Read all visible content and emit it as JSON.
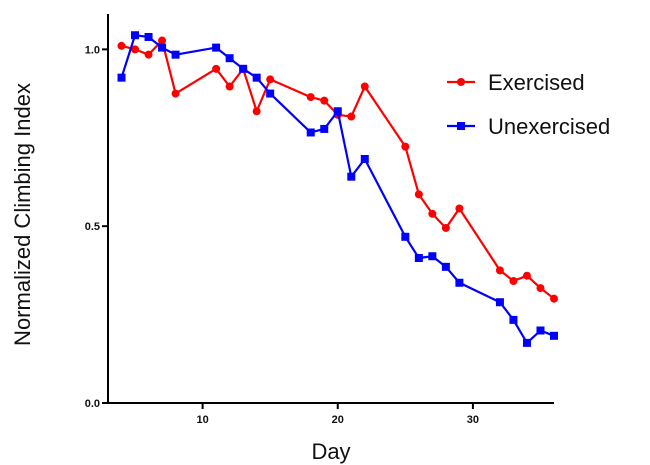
{
  "chart_data": {
    "type": "line",
    "title": "",
    "xlabel": "Day",
    "ylabel": "Normalized Climbing Index",
    "xlim": [
      3,
      36
    ],
    "ylim": [
      0,
      1.1
    ],
    "xticks": [
      10,
      20,
      30
    ],
    "xtick_labels": [
      "10",
      "20",
      "30"
    ],
    "yticks": [
      0,
      0.5,
      1.0
    ],
    "ytick_labels": [
      "0.0",
      "0.5",
      "1.0"
    ],
    "grid": false,
    "legend_position": "top-right",
    "series": [
      {
        "name": "Exercised",
        "color": "#ff0000",
        "marker": "circle",
        "x": [
          4,
          5,
          6,
          7,
          8,
          11,
          12,
          13,
          14,
          15,
          18,
          19,
          20,
          21,
          22,
          25,
          26,
          27,
          28,
          29,
          32,
          33,
          34,
          35,
          36
        ],
        "y": [
          1.01,
          1.0,
          0.985,
          1.025,
          0.875,
          0.945,
          0.895,
          0.945,
          0.825,
          0.915,
          0.865,
          0.855,
          0.815,
          0.81,
          0.895,
          0.725,
          0.59,
          0.535,
          0.495,
          0.55,
          0.375,
          0.345,
          0.36,
          0.325,
          0.295
        ]
      },
      {
        "name": "Unexercised",
        "color": "#0000ff",
        "marker": "square",
        "x": [
          4,
          5,
          6,
          7,
          8,
          11,
          12,
          13,
          14,
          15,
          18,
          19,
          20,
          21,
          22,
          25,
          26,
          27,
          28,
          29,
          32,
          33,
          34,
          35,
          36
        ],
        "y": [
          0.92,
          1.04,
          1.035,
          1.005,
          0.985,
          1.005,
          0.975,
          0.945,
          0.92,
          0.875,
          0.765,
          0.775,
          0.825,
          0.64,
          0.69,
          0.47,
          0.41,
          0.415,
          0.385,
          0.34,
          0.285,
          0.235,
          0.17,
          0.205,
          0.19
        ]
      }
    ]
  }
}
